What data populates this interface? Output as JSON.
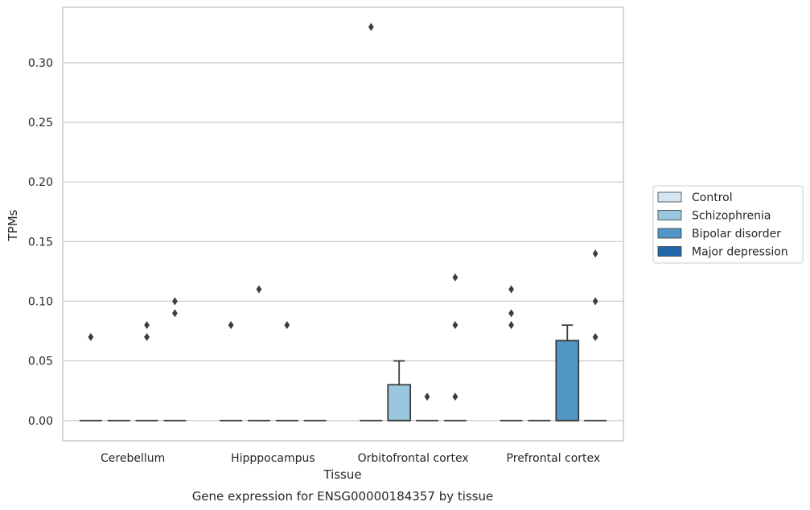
{
  "chart_data": {
    "type": "box",
    "caption": "Gene expression for ENSG00000184357 by tissue",
    "xlabel": "Tissue",
    "ylabel": "TPMs",
    "ylim": [
      -0.017,
      0.3465
    ],
    "yticks": [
      0.0,
      0.05,
      0.1,
      0.15,
      0.2,
      0.25,
      0.3
    ],
    "ytick_labels": [
      "0.00",
      "0.05",
      "0.10",
      "0.15",
      "0.20",
      "0.25",
      "0.30"
    ],
    "grid": true,
    "legend_position": "right",
    "categories": [
      "Cerebellum",
      "Hipppocampus",
      "Orbitofrontal cortex",
      "Prefrontal cortex"
    ],
    "series": [
      {
        "name": "Control",
        "color": "#d4e4f1",
        "boxes": [
          {
            "q1": 0,
            "median": 0,
            "q3": 0,
            "whisker_low": 0,
            "whisker_high": 0,
            "outliers": [
              0.07
            ]
          },
          {
            "q1": 0,
            "median": 0,
            "q3": 0,
            "whisker_low": 0,
            "whisker_high": 0,
            "outliers": [
              0.08
            ]
          },
          {
            "q1": 0,
            "median": 0,
            "q3": 0,
            "whisker_low": 0,
            "whisker_high": 0,
            "outliers": [
              0.33
            ]
          },
          {
            "q1": 0,
            "median": 0,
            "q3": 0,
            "whisker_low": 0,
            "whisker_high": 0,
            "outliers": [
              0.08,
              0.09,
              0.11
            ]
          }
        ]
      },
      {
        "name": "Schizophrenia",
        "color": "#9ac7e0",
        "boxes": [
          {
            "q1": 0,
            "median": 0,
            "q3": 0,
            "whisker_low": 0,
            "whisker_high": 0,
            "outliers": []
          },
          {
            "q1": 0,
            "median": 0,
            "q3": 0,
            "whisker_low": 0,
            "whisker_high": 0,
            "outliers": [
              0.11
            ]
          },
          {
            "q1": 0,
            "median": 0,
            "q3": 0.03,
            "whisker_low": 0,
            "whisker_high": 0.05,
            "outliers": []
          },
          {
            "q1": 0,
            "median": 0,
            "q3": 0,
            "whisker_low": 0,
            "whisker_high": 0,
            "outliers": []
          }
        ]
      },
      {
        "name": "Bipolar disorder",
        "color": "#5097c6",
        "boxes": [
          {
            "q1": 0,
            "median": 0,
            "q3": 0,
            "whisker_low": 0,
            "whisker_high": 0,
            "outliers": [
              0.07,
              0.08
            ]
          },
          {
            "q1": 0,
            "median": 0,
            "q3": 0,
            "whisker_low": 0,
            "whisker_high": 0,
            "outliers": [
              0.08
            ]
          },
          {
            "q1": 0,
            "median": 0,
            "q3": 0,
            "whisker_low": 0,
            "whisker_high": 0,
            "outliers": [
              0.02
            ]
          },
          {
            "q1": 0,
            "median": 0,
            "q3": 0.067,
            "whisker_low": 0,
            "whisker_high": 0.08,
            "outliers": []
          }
        ]
      },
      {
        "name": "Major depression",
        "color": "#2068ab",
        "boxes": [
          {
            "q1": 0,
            "median": 0,
            "q3": 0,
            "whisker_low": 0,
            "whisker_high": 0,
            "outliers": [
              0.09,
              0.1
            ]
          },
          {
            "q1": 0,
            "median": 0,
            "q3": 0,
            "whisker_low": 0,
            "whisker_high": 0,
            "outliers": []
          },
          {
            "q1": 0,
            "median": 0,
            "q3": 0,
            "whisker_low": 0,
            "whisker_high": 0,
            "outliers": [
              0.02,
              0.08,
              0.12
            ]
          },
          {
            "q1": 0,
            "median": 0,
            "q3": 0,
            "whisker_low": 0,
            "whisker_high": 0,
            "outliers": [
              0.07,
              0.1,
              0.14
            ]
          }
        ]
      }
    ]
  }
}
